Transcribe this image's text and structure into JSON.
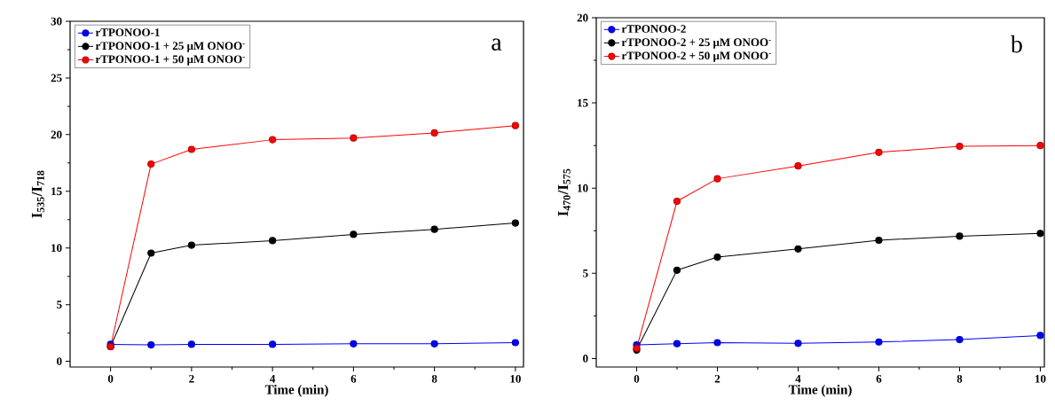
{
  "chart_data": [
    {
      "type": "line",
      "xlabel": "Time (min)",
      "ylabel": "I$_{535}$/I$_{718}$",
      "xlim": [
        -1,
        10.2
      ],
      "ylim": [
        -0.5,
        30
      ],
      "xticks": [
        0,
        2,
        4,
        6,
        8,
        10
      ],
      "yticks": [
        0,
        5,
        10,
        15,
        20,
        25,
        30
      ],
      "legend": "top left",
      "marker": "circle",
      "annotations": [
        "a"
      ],
      "x": [
        0,
        1,
        2,
        4,
        6,
        8,
        10
      ],
      "series": [
        {
          "name": "rTPONOO-1",
          "color": "#0000ff",
          "values": [
            1.5,
            1.45,
            1.5,
            1.5,
            1.55,
            1.55,
            1.65
          ]
        },
        {
          "name": "rTPONOO-1 + 25 μM ONOO$^{-}$",
          "color": "#000000",
          "values": [
            1.3,
            9.55,
            10.25,
            10.65,
            11.2,
            11.65,
            12.2
          ]
        },
        {
          "name": "rTPONOO-1 + 50 μM ONOO$^{-}$",
          "color": "#ff0000",
          "values": [
            1.3,
            17.4,
            18.7,
            19.55,
            19.7,
            20.15,
            20.8
          ]
        }
      ]
    },
    {
      "type": "line",
      "xlabel": "Time (min)",
      "ylabel": "I$_{470}$/I$_{575}$",
      "xlim": [
        -1,
        10.1
      ],
      "ylim": [
        -0.5,
        20
      ],
      "xticks": [
        0,
        2,
        4,
        6,
        8,
        10
      ],
      "yticks": [
        0,
        5,
        10,
        15,
        20
      ],
      "legend": "top left",
      "marker": "circle",
      "annotations": [
        "b"
      ],
      "x": [
        0,
        1,
        2,
        4,
        6,
        8,
        10
      ],
      "series": [
        {
          "name": "rTPONOO-2",
          "color": "#0000ff",
          "values": [
            0.8,
            0.87,
            0.93,
            0.89,
            0.97,
            1.11,
            1.35
          ]
        },
        {
          "name": "rTPONOO-2 + 25 μM ONOO$^{-}$",
          "color": "#000000",
          "values": [
            0.5,
            5.18,
            5.95,
            6.43,
            6.94,
            7.18,
            7.34
          ]
        },
        {
          "name": "rTPONOO-2 + 50 μM ONOO$^{-}$",
          "color": "#ff0000",
          "values": [
            0.6,
            9.23,
            10.55,
            11.3,
            12.1,
            12.45,
            12.5
          ]
        }
      ]
    }
  ]
}
